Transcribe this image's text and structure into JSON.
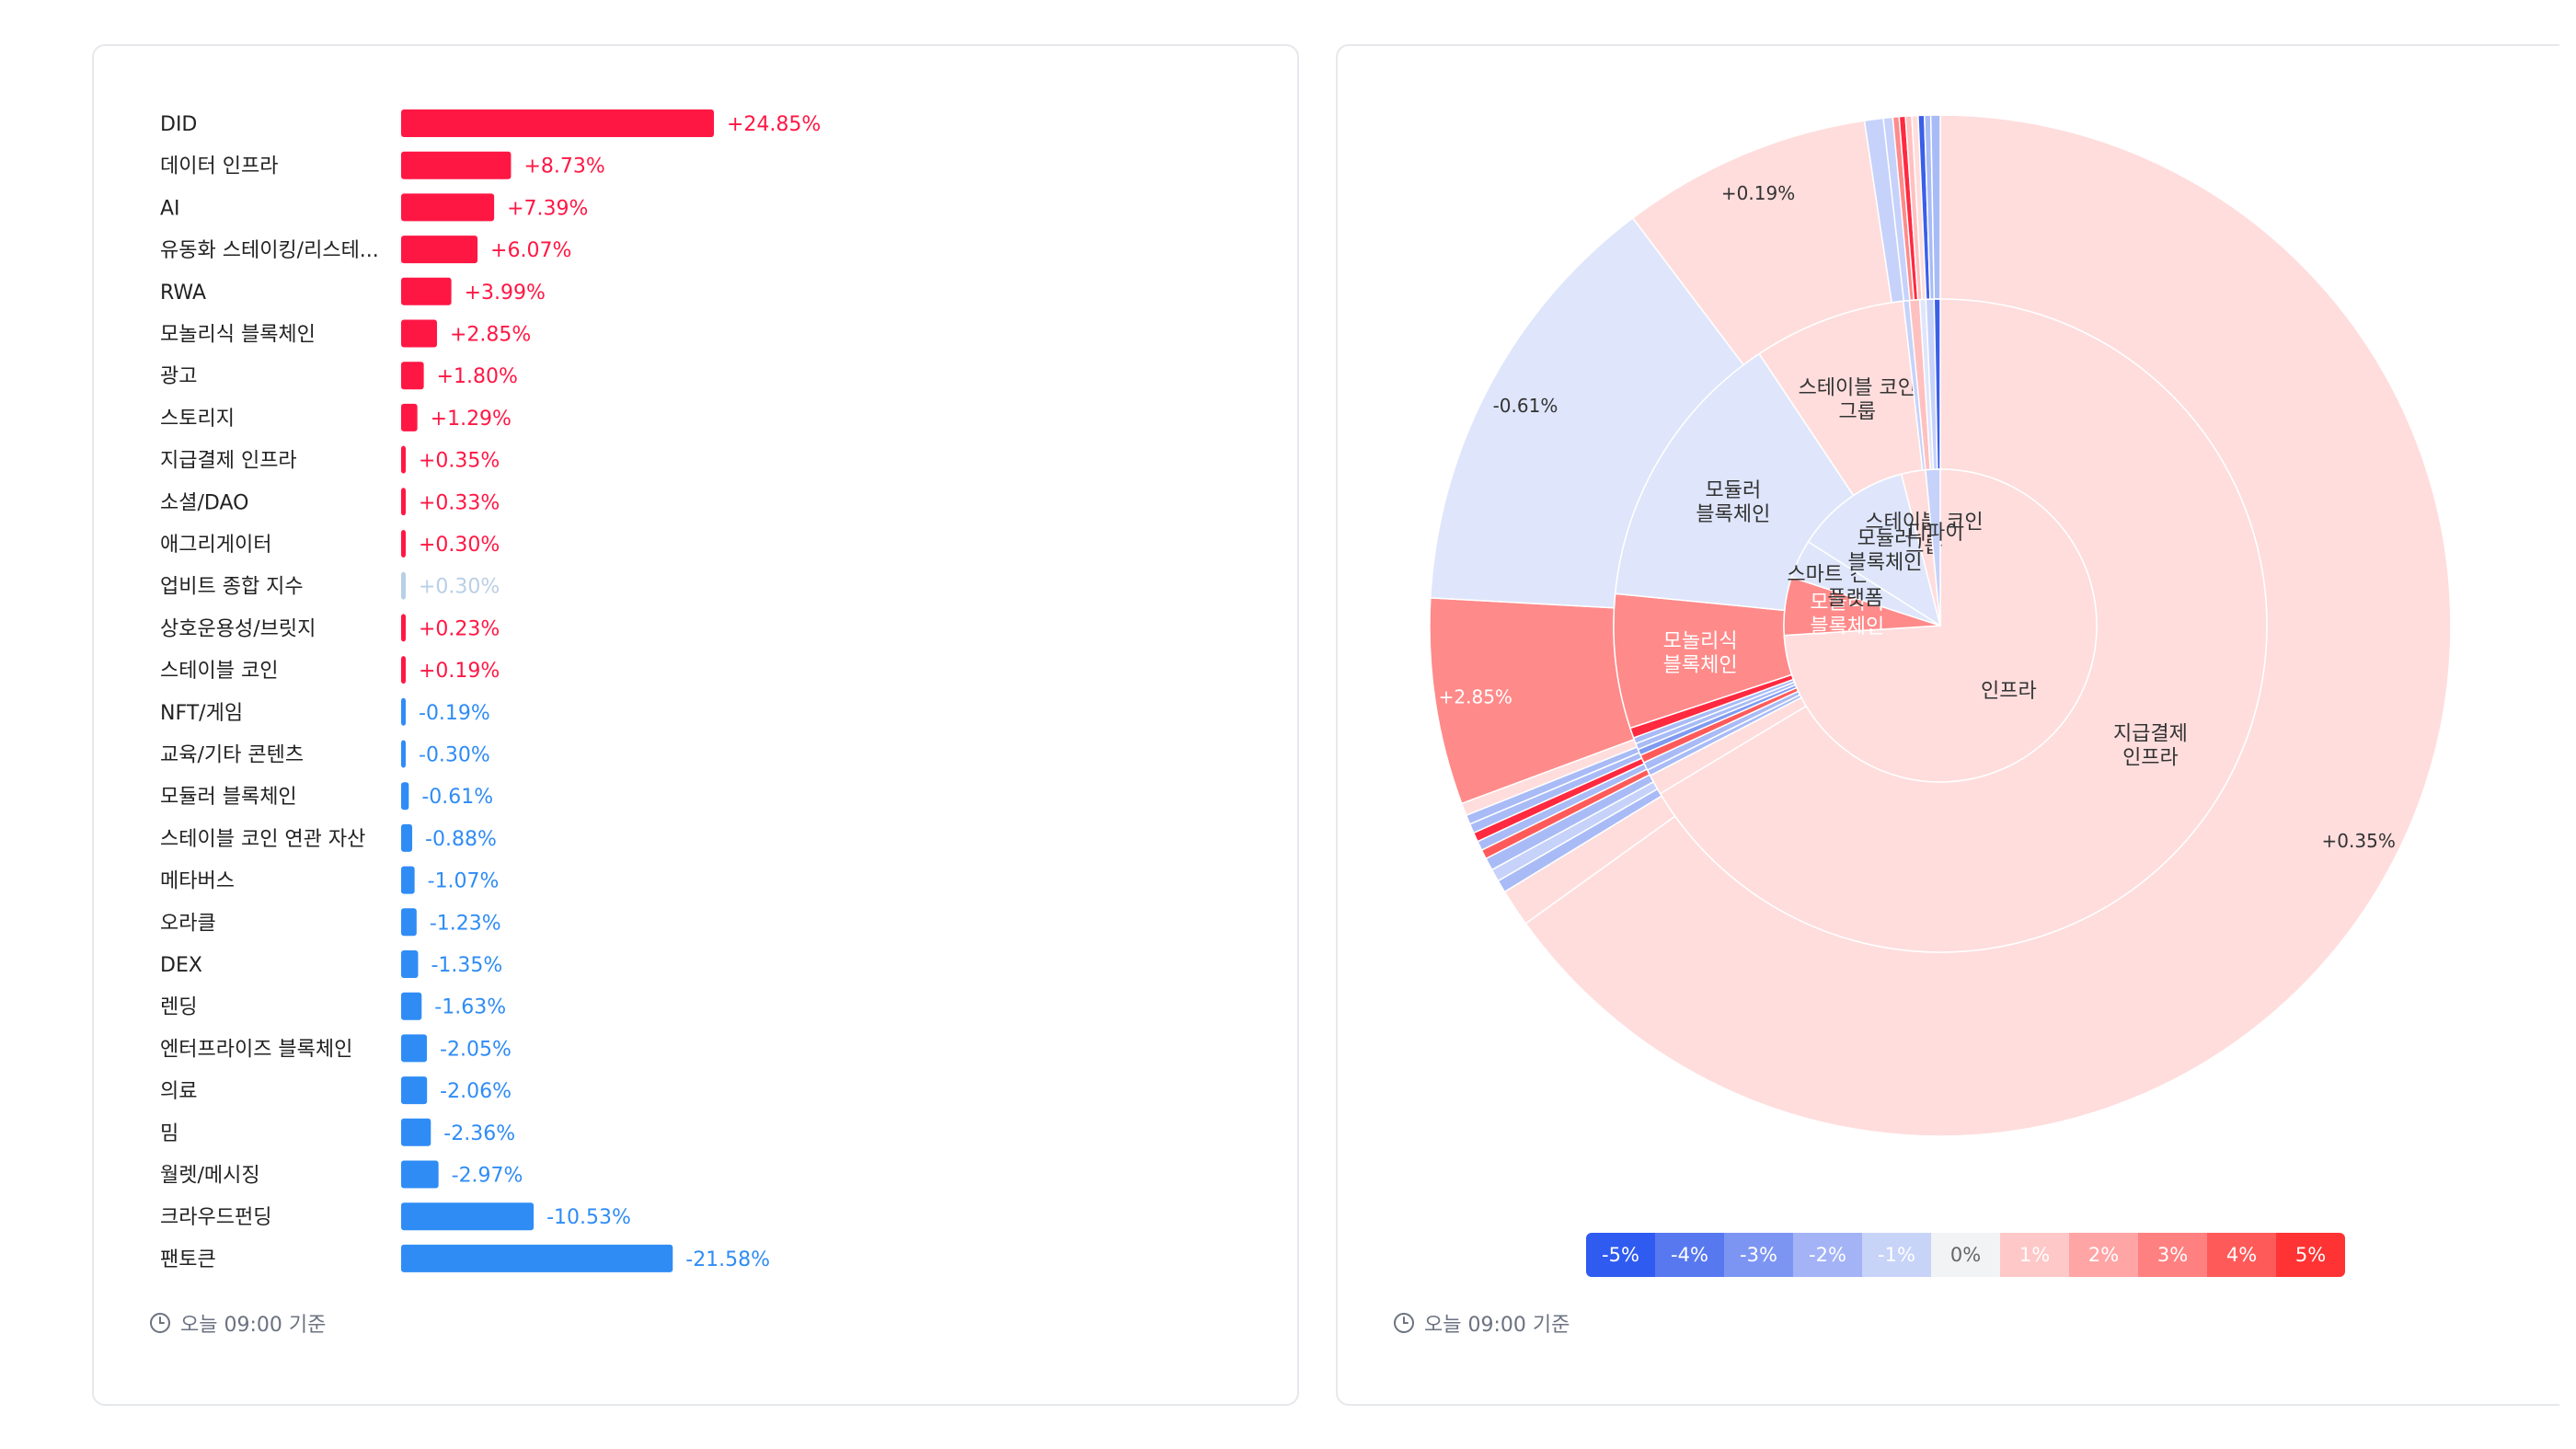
{
  "footnote_text": "오늘 09:00 기준",
  "chart_data": [
    {
      "type": "bar",
      "orientation": "horizontal",
      "categories": [
        "DID",
        "데이터 인프라",
        "AI",
        "유동화 스테이킹/리스테...",
        "RWA",
        "모놀리식 블록체인",
        "광고",
        "스토리지",
        "지급결제 인프라",
        "소셜/DAO",
        "애그리게이터",
        "업비트 종합 지수",
        "상호운용성/브릿지",
        "스테이블 코인",
        "NFT/게임",
        "교육/기타 콘텐츠",
        "모듈러 블록체인",
        "스테이블 코인 연관 자산",
        "메타버스",
        "오라클",
        "DEX",
        "렌딩",
        "엔터프라이즈 블록체인",
        "의료",
        "밈",
        "월렛/메시징",
        "크라우드펀딩",
        "팬토큰"
      ],
      "values": [
        24.85,
        8.73,
        7.39,
        6.07,
        3.99,
        2.85,
        1.8,
        1.29,
        0.35,
        0.33,
        0.3,
        0.3,
        0.23,
        0.19,
        -0.19,
        -0.3,
        -0.61,
        -0.88,
        -1.07,
        -1.23,
        -1.35,
        -1.63,
        -2.05,
        -2.06,
        -2.36,
        -2.97,
        -10.53,
        -21.58
      ],
      "labels": [
        "+24.85%",
        "+8.73%",
        "+7.39%",
        "+6.07%",
        "+3.99%",
        "+2.85%",
        "+1.80%",
        "+1.29%",
        "+0.35%",
        "+0.33%",
        "+0.30%",
        "+0.30%",
        "+0.23%",
        "+0.19%",
        "-0.19%",
        "-0.30%",
        "-0.61%",
        "-0.88%",
        "-1.07%",
        "-1.23%",
        "-1.35%",
        "-1.63%",
        "-2.05%",
        "-2.06%",
        "-2.36%",
        "-2.97%",
        "-10.53%",
        "-21.58%"
      ],
      "highlighted_index": 11,
      "colors": {
        "positive": "#ff1744",
        "negative": "#2f8cf5",
        "highlight": "#b9cfe6"
      }
    },
    {
      "type": "sunburst",
      "rings": {
        "inner": [
          {
            "name": "인프라",
            "share": 0.74,
            "value": 0.35
          },
          {
            "name": "모놀리식 블록체인",
            "share": 0.06,
            "value": 2.85
          },
          {
            "name": "스마트 컨트랙트 플랫폼",
            "share": 0.04,
            "value": -0.2
          },
          {
            "name": "모듈러 블록체인",
            "share": 0.12,
            "value": -0.61
          },
          {
            "name": "스테이블 코인 그룹",
            "share": 0.025,
            "value": 0.19
          },
          {
            "name": "디파이",
            "share": 0.015,
            "value": -1.5
          }
        ],
        "middle": [
          {
            "name": "지급결제 인프라",
            "share": 0.66,
            "value": 0.35
          },
          {
            "name": "",
            "share": 0.01,
            "value": 0.2
          },
          {
            "name": "",
            "share": 0.003,
            "value": -3
          },
          {
            "name": "",
            "share": 0.004,
            "value": -2
          },
          {
            "name": "",
            "share": 0.004,
            "value": 4
          },
          {
            "name": "",
            "share": 0.003,
            "value": -4
          },
          {
            "name": "",
            "share": 0.003,
            "value": -2
          },
          {
            "name": "",
            "share": 0.003,
            "value": -2
          },
          {
            "name": "",
            "share": 0.005,
            "value": 4.5
          },
          {
            "name": "모놀리식 블록체인",
            "share": 0.066,
            "value": 2.85
          },
          {
            "name": "모듈러 블록체인",
            "share": 0.14,
            "value": -0.61
          },
          {
            "name": "스테이블 코인 그룹",
            "share": 0.075,
            "value": 0.19
          },
          {
            "name": "",
            "share": 0.003,
            "value": -1.5
          },
          {
            "name": "",
            "share": 0.005,
            "value": 1.5
          },
          {
            "name": "",
            "share": 0.003,
            "value": -0.5
          },
          {
            "name": "",
            "share": 0.004,
            "value": -1.5
          },
          {
            "name": "",
            "share": 0.003,
            "value": -4.5
          }
        ],
        "outer": [
          {
            "name": "",
            "share": 0.658,
            "value": 0.35,
            "label": "+0.35%"
          },
          {
            "name": "",
            "share": 0.012,
            "value": 0.2
          },
          {
            "name": "",
            "share": 0.004,
            "value": -3
          },
          {
            "name": "",
            "share": 0.004,
            "value": -1.5
          },
          {
            "name": "",
            "share": 0.004,
            "value": -3
          },
          {
            "name": "",
            "share": 0.003,
            "value": 4
          },
          {
            "name": "",
            "share": 0.003,
            "value": -2.5
          },
          {
            "name": "",
            "share": 0.003,
            "value": 4.5
          },
          {
            "name": "",
            "share": 0.003,
            "value": -3
          },
          {
            "name": "",
            "share": 0.003,
            "value": -2
          },
          {
            "name": "",
            "share": 0.004,
            "value": 0.5
          },
          {
            "name": "",
            "share": 0.066,
            "value": 2.85,
            "label": "+2.85%"
          },
          {
            "name": "",
            "share": 0.14,
            "value": -0.61,
            "label": "-0.61%"
          },
          {
            "name": "",
            "share": 0.08,
            "value": 0.19,
            "label": "+0.19%"
          },
          {
            "name": "",
            "share": 0.006,
            "value": -1
          },
          {
            "name": "",
            "share": 0.003,
            "value": -1.5
          },
          {
            "name": "",
            "share": 0.002,
            "value": 3
          },
          {
            "name": "",
            "share": 0.002,
            "value": 4.5
          },
          {
            "name": "",
            "share": 0.002,
            "value": 1
          },
          {
            "name": "",
            "share": 0.002,
            "value": 0.5
          },
          {
            "name": "",
            "share": 0.002,
            "value": -4.5
          },
          {
            "name": "",
            "share": 0.002,
            "value": -3
          },
          {
            "name": "",
            "share": 0.003,
            "value": -2
          }
        ]
      },
      "legend": {
        "labels": [
          "-5%",
          "-4%",
          "-3%",
          "-2%",
          "-1%",
          "0%",
          "1%",
          "2%",
          "3%",
          "4%",
          "5%"
        ],
        "colors": [
          "#2f5bf0",
          "#5878f0",
          "#7d95f2",
          "#a3b3f5",
          "#c8d3f8",
          "#f2f3f5",
          "#ffc8c8",
          "#ffa5a5",
          "#ff8080",
          "#ff5a5a",
          "#ff3333"
        ],
        "text_colors": [
          "#ffffff",
          "#ffffff",
          "#ffffff",
          "#ffffff",
          "#ffffff",
          "#666666",
          "#ffffff",
          "#ffffff",
          "#ffffff",
          "#ffffff",
          "#ffffff"
        ]
      }
    }
  ]
}
